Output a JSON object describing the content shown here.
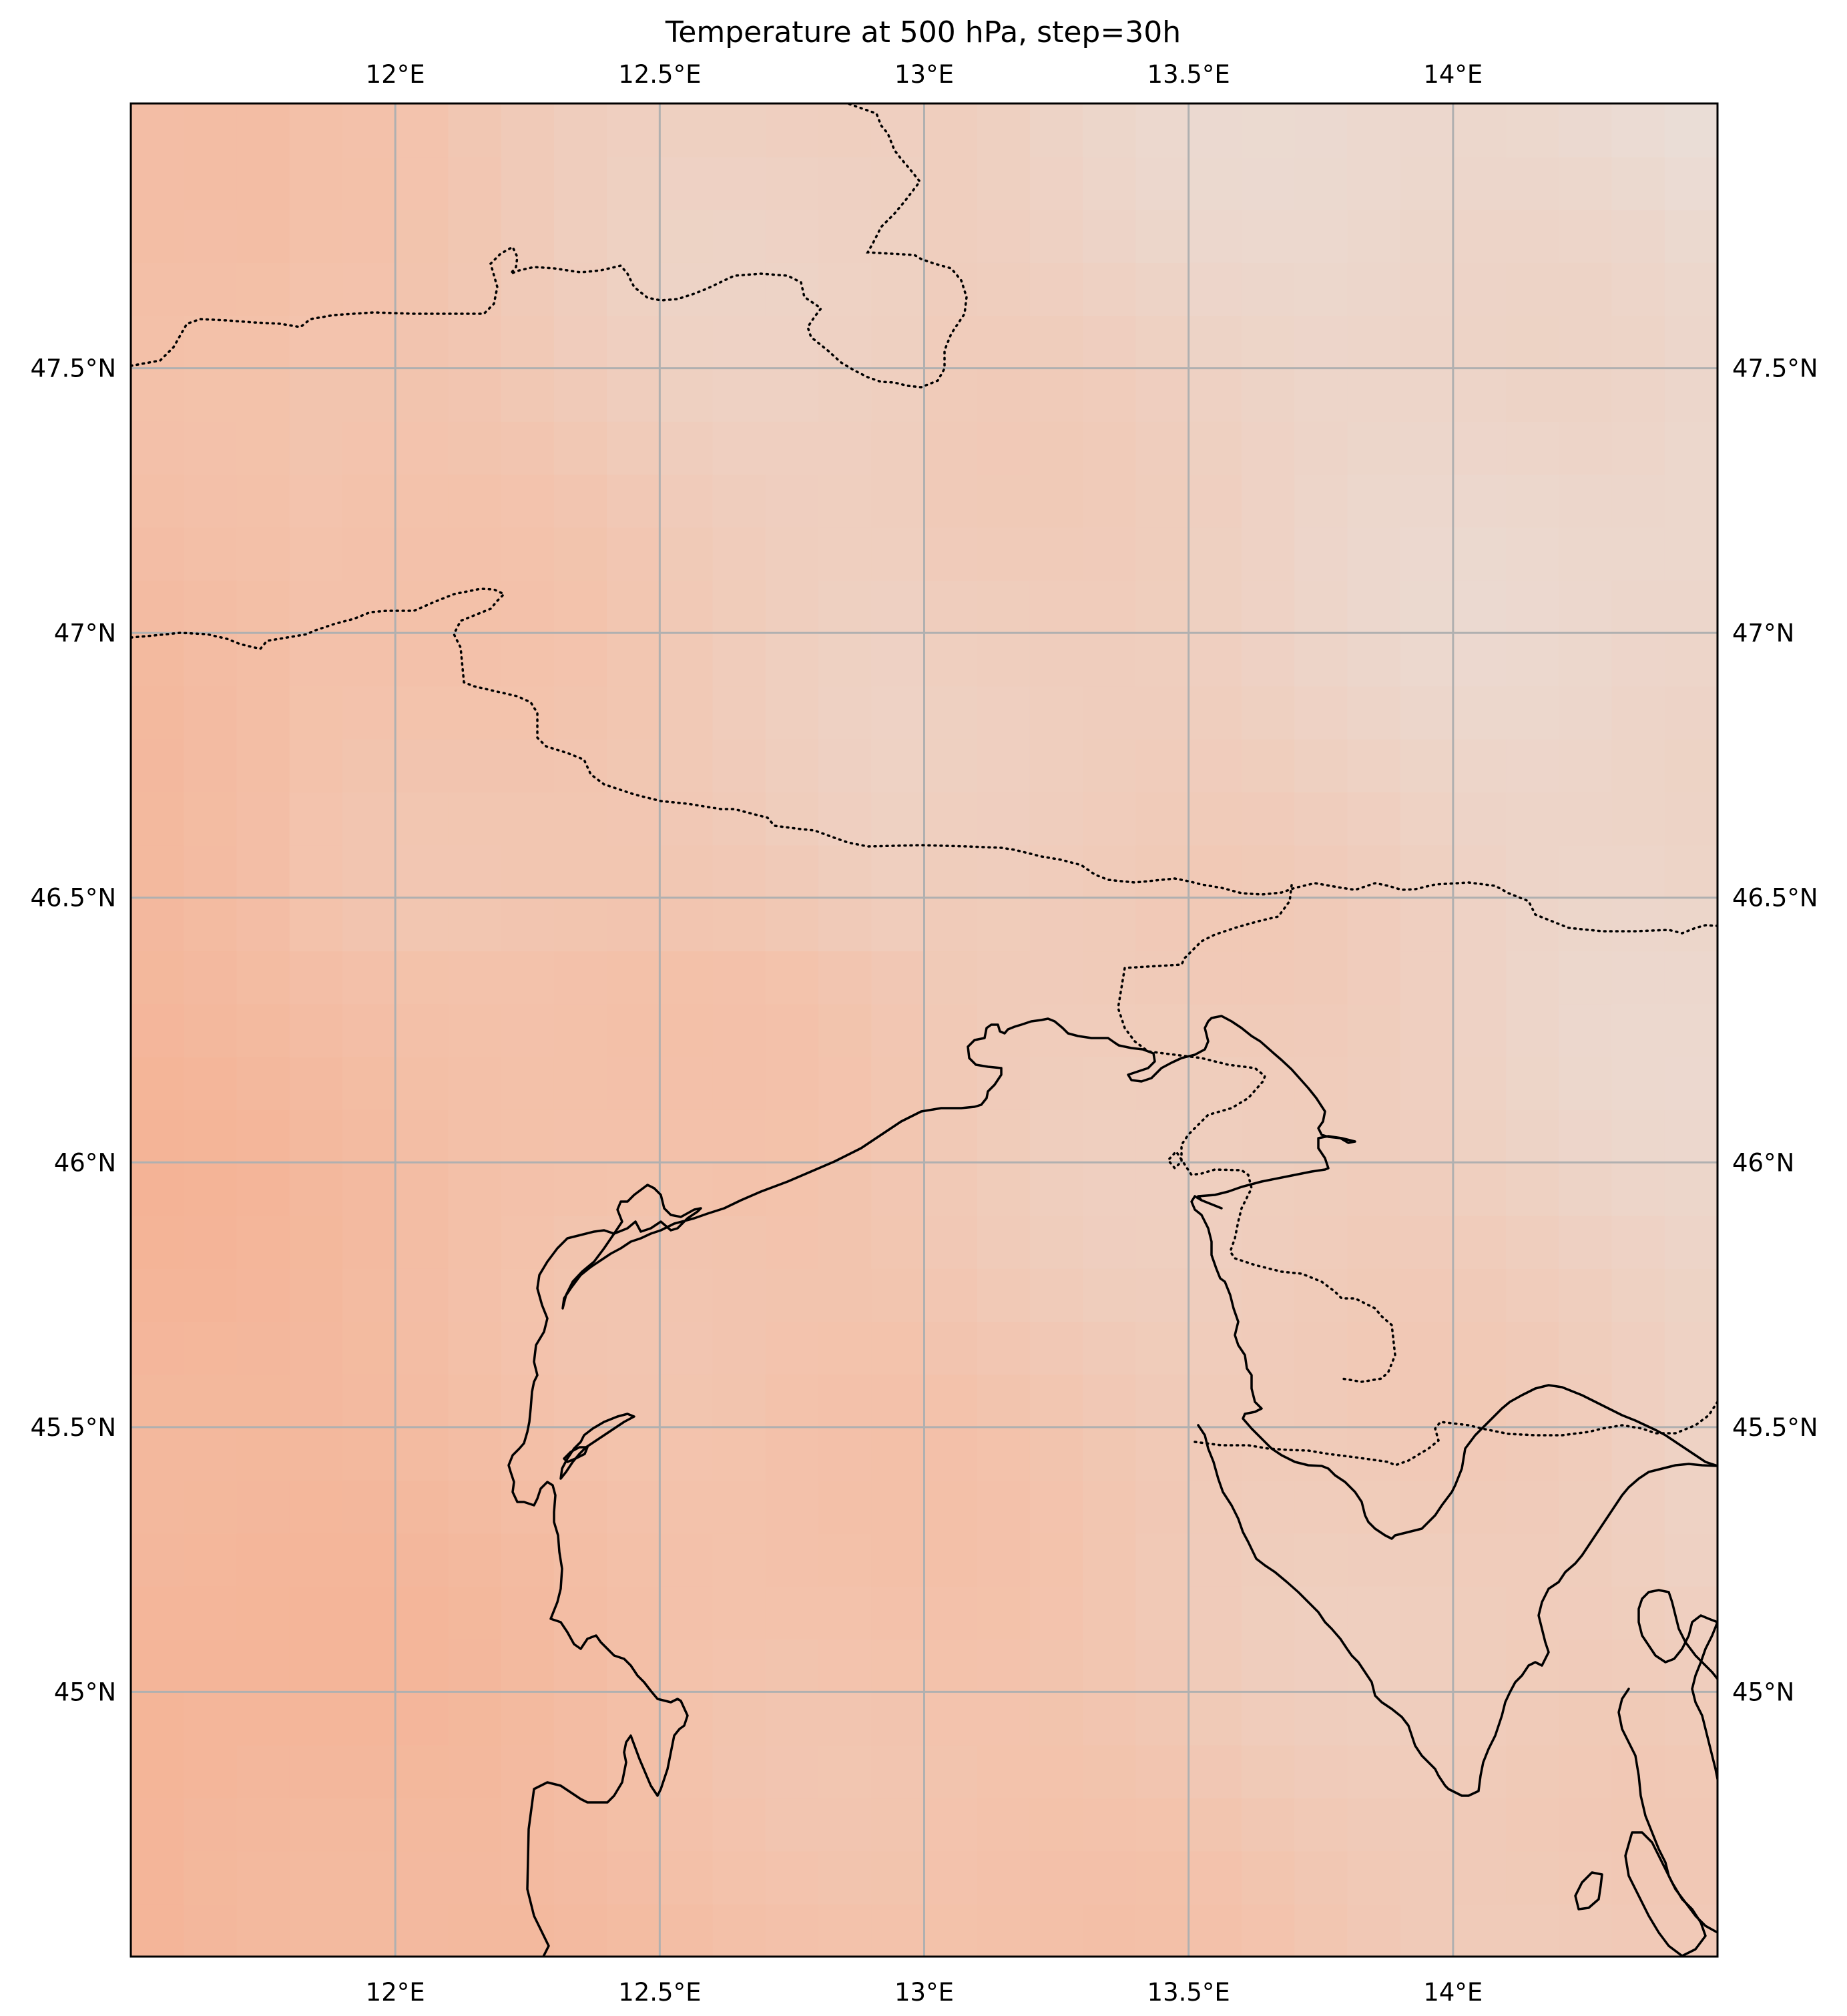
{
  "title": "Temperature at 500 hPa, step=30h",
  "chart_data": {
    "type": "heatmap",
    "title": "Temperature at 500 hPa, step=30h",
    "projection": "PlateCarree",
    "xlim": [
      11.5,
      14.5
    ],
    "ylim": [
      44.5,
      48.0
    ],
    "lon_ticks": [
      12.0,
      12.5,
      13.0,
      13.5,
      14.0
    ],
    "lat_ticks": [
      45.0,
      45.5,
      46.0,
      46.5,
      47.0,
      47.5
    ],
    "lon_labels": [
      "12°E",
      "12.5°E",
      "13°E",
      "13.5°E",
      "14°E"
    ],
    "lat_labels": [
      "45°N",
      "45.5°N",
      "46°N",
      "46.5°N",
      "47°N",
      "47.5°N"
    ],
    "gridlines": true,
    "colorbar": false,
    "field_colors": {
      "warm": "#f4ac8c",
      "mid": "#f3c2ab",
      "cool": "#eaddd6"
    },
    "features": [
      "coastline",
      "country-borders"
    ]
  }
}
